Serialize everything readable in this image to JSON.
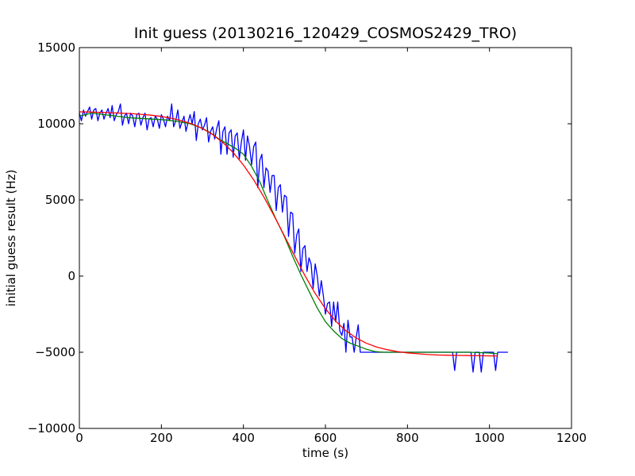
{
  "chart_data": {
    "type": "line",
    "title": "Init guess (20130216_120429_COSMOS2429_TRO)",
    "xlabel": "time (s)",
    "ylabel": "initial guess result (Hz)",
    "xlim": [
      0,
      1200
    ],
    "ylim": [
      -10000,
      15000
    ],
    "x_ticks": [
      0,
      200,
      400,
      600,
      800,
      1000,
      1200
    ],
    "y_ticks": [
      -10000,
      -5000,
      0,
      5000,
      10000,
      15000
    ],
    "x_tick_labels": [
      "0",
      "200",
      "400",
      "600",
      "800",
      "1000",
      "1200"
    ],
    "y_tick_labels": [
      "−10000",
      "−5000",
      "0",
      "5000",
      "10000",
      "15000"
    ],
    "grid": false,
    "series": [
      {
        "color": "#0000ff",
        "x": [
          0,
          5,
          10,
          15,
          20,
          25,
          30,
          35,
          40,
          45,
          50,
          55,
          60,
          65,
          70,
          75,
          80,
          85,
          90,
          95,
          100,
          105,
          110,
          115,
          120,
          125,
          130,
          135,
          140,
          145,
          150,
          155,
          160,
          165,
          170,
          175,
          180,
          185,
          190,
          195,
          200,
          205,
          210,
          215,
          220,
          225,
          230,
          235,
          240,
          245,
          250,
          255,
          260,
          265,
          270,
          275,
          280,
          285,
          290,
          295,
          300,
          305,
          310,
          315,
          320,
          325,
          330,
          335,
          340,
          345,
          350,
          355,
          360,
          365,
          370,
          375,
          380,
          385,
          390,
          395,
          400,
          405,
          410,
          415,
          420,
          425,
          430,
          435,
          440,
          445,
          450,
          455,
          460,
          465,
          470,
          475,
          480,
          485,
          490,
          495,
          500,
          505,
          510,
          515,
          520,
          525,
          530,
          535,
          540,
          545,
          550,
          555,
          560,
          565,
          570,
          575,
          580,
          585,
          590,
          595,
          600,
          605,
          610,
          615,
          620,
          625,
          630,
          635,
          640,
          645,
          650,
          655,
          660,
          665,
          670,
          675,
          680,
          685,
          690,
          695,
          700,
          710,
          720,
          730,
          740,
          750,
          760,
          770,
          780,
          790,
          800,
          810,
          820,
          830,
          840,
          850,
          860,
          870,
          880,
          890,
          900,
          905,
          910,
          915,
          920,
          925,
          930,
          935,
          940,
          945,
          950,
          955,
          960,
          965,
          970,
          975,
          980,
          985,
          990,
          995,
          1000,
          1005,
          1010,
          1015,
          1020,
          1025,
          1030,
          1035,
          1040,
          1045
        ],
        "y": [
          10700,
          10200,
          10900,
          10500,
          10800,
          11100,
          10300,
          10900,
          11000,
          10200,
          10700,
          10900,
          10300,
          10700,
          11000,
          10400,
          11200,
          10200,
          10600,
          10800,
          11300,
          9900,
          10500,
          10700,
          10000,
          10700,
          10500,
          9800,
          10600,
          10700,
          9900,
          10400,
          10700,
          9600,
          10300,
          10400,
          9800,
          10500,
          10300,
          9700,
          10600,
          10300,
          9800,
          10500,
          10200,
          11300,
          9800,
          10200,
          10900,
          9700,
          10100,
          10500,
          9500,
          10100,
          10600,
          10000,
          10800,
          8900,
          10000,
          10300,
          9600,
          9900,
          10400,
          8800,
          9500,
          9800,
          9000,
          9700,
          10200,
          8000,
          9500,
          9800,
          8000,
          9400,
          9600,
          7800,
          9200,
          9400,
          7700,
          8800,
          9600,
          7600,
          9200,
          8500,
          7300,
          8500,
          8800,
          5800,
          7600,
          8000,
          5800,
          7100,
          6900,
          5500,
          6600,
          6600,
          4300,
          5800,
          6000,
          4200,
          5300,
          5200,
          2600,
          4200,
          4100,
          1500,
          2700,
          3100,
          300,
          1800,
          2000,
          300,
          1200,
          800,
          -800,
          800,
          0,
          -1300,
          -300,
          -1300,
          -2500,
          -1800,
          -1700,
          -3300,
          -1700,
          -3000,
          -1700,
          -3600,
          -3900,
          -3100,
          -5000,
          -2900,
          -4000,
          -4000,
          -5000,
          -4000,
          -3200,
          -5000,
          -5000,
          -5000,
          -5000,
          -5000,
          -5000,
          -5000,
          -5000,
          -5000,
          -5000,
          -5000,
          -5000,
          -5000,
          -5000,
          -5000,
          -5000,
          -5000,
          -5000,
          -5000,
          -5000,
          -5000,
          -5000,
          -5000,
          -5000,
          -5000,
          -5000,
          -6200,
          -5000,
          -5000,
          -5000,
          -5000,
          -5000,
          -5000,
          -5000,
          -5000,
          -6300,
          -5000,
          -5000,
          -5000,
          -6300,
          -5000,
          -5000,
          -5000,
          -5000,
          -5000,
          -5000,
          -6200,
          -5000,
          -5000,
          -5000,
          -5000,
          -5000,
          -5000
        ]
      },
      {
        "color": "#008000",
        "x": [
          0,
          30,
          60,
          90,
          120,
          150,
          180,
          210,
          240,
          270,
          300,
          320,
          340,
          360,
          380,
          400,
          420,
          440,
          460,
          480,
          500,
          520,
          540,
          560,
          580,
          600,
          620,
          640,
          660,
          680,
          700,
          720,
          740,
          760,
          800,
          850,
          900,
          950,
          1000,
          1020
        ],
        "y": [
          10500,
          10700,
          10600,
          10500,
          10400,
          10350,
          10300,
          10250,
          10150,
          10000,
          9700,
          9400,
          9000,
          8700,
          8400,
          8000,
          7200,
          6200,
          4900,
          3700,
          2600,
          1300,
          100,
          -1000,
          -2100,
          -3000,
          -3600,
          -4100,
          -4400,
          -4600,
          -4800,
          -4950,
          -5000,
          -5000,
          -5000,
          -5000,
          -5000,
          -5000,
          -5050,
          -5100
        ]
      },
      {
        "color": "#ff0000",
        "x": [
          0,
          25,
          50,
          75,
          100,
          125,
          150,
          175,
          200,
          225,
          250,
          275,
          300,
          325,
          350,
          375,
          400,
          425,
          450,
          475,
          500,
          525,
          550,
          575,
          600,
          625,
          650,
          675,
          700,
          725,
          750,
          775,
          800,
          825,
          850,
          875,
          900,
          925,
          950,
          975,
          1000,
          1020
        ],
        "y": [
          10780,
          10770,
          10750,
          10730,
          10700,
          10670,
          10620,
          10560,
          10480,
          10360,
          10200,
          9990,
          9690,
          9290,
          8770,
          8110,
          7290,
          6320,
          5190,
          3950,
          2640,
          1310,
          30,
          -1140,
          -2140,
          -2960,
          -3590,
          -4070,
          -4410,
          -4660,
          -4830,
          -4960,
          -5040,
          -5100,
          -5150,
          -5180,
          -5200,
          -5210,
          -5220,
          -5230,
          -5240,
          -5240
        ]
      }
    ]
  }
}
